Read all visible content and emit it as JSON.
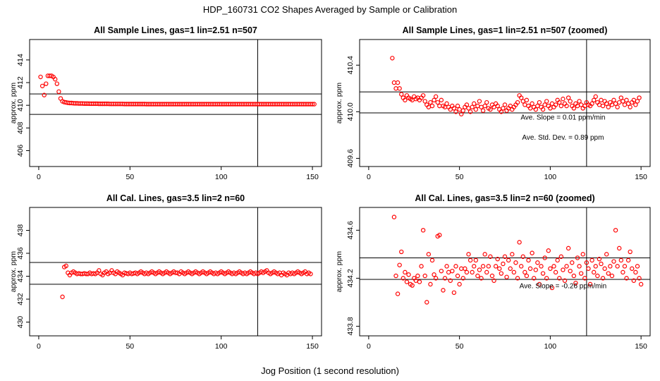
{
  "figure": {
    "title": "HDP_160731  CO2 Shapes Averaged by Sample or Calibration",
    "xlabel": "Jog Position (1 second resolution)"
  },
  "colors": {
    "points": "#ff0000",
    "lines": "#000000"
  },
  "chart_data": [
    {
      "type": "scatter",
      "title": "All Sample Lines, gas=1 lin=2.51 n=507",
      "ylabel": "approx. ppm",
      "xlim": [
        -5,
        155
      ],
      "ylim": [
        404.6,
        415.8
      ],
      "xticks": [
        "0",
        "50",
        "100",
        "150"
      ],
      "yticks": [
        "406",
        "408",
        "410",
        "412",
        "414"
      ],
      "hlines": [
        411.0,
        409.2
      ],
      "vline": 120,
      "annotations": [],
      "x_start": 1,
      "y": [
        412.5,
        411.7,
        410.9,
        411.9,
        412.6,
        412.6,
        412.6,
        412.5,
        412.3,
        411.9,
        411.2,
        410.6,
        410.35,
        410.28,
        410.25,
        410.22,
        410.2,
        410.2,
        410.18,
        410.17,
        410.17,
        410.16,
        410.16,
        410.16,
        410.15,
        410.15,
        410.15,
        410.14,
        410.14,
        410.14,
        410.14,
        410.14,
        410.13,
        410.13,
        410.13,
        410.13,
        410.13,
        410.13,
        410.12,
        410.12,
        410.12,
        410.12,
        410.12,
        410.12,
        410.12,
        410.12,
        410.11,
        410.11,
        410.11,
        410.11,
        410.11,
        410.11,
        410.11,
        410.11,
        410.11,
        410.11,
        410.11,
        410.11,
        410.1,
        410.1,
        410.1,
        410.1,
        410.1,
        410.1,
        410.1,
        410.1,
        410.1,
        410.1,
        410.1,
        410.1,
        410.1,
        410.1,
        410.1,
        410.1,
        410.1,
        410.1,
        410.1,
        410.1,
        410.1,
        410.1,
        410.1,
        410.1,
        410.1,
        410.1,
        410.1,
        410.1,
        410.1,
        410.1,
        410.1,
        410.1,
        410.1,
        410.1,
        410.1,
        410.1,
        410.1,
        410.1,
        410.1,
        410.1,
        410.1,
        410.1,
        410.1,
        410.1,
        410.1,
        410.1,
        410.1,
        410.1,
        410.1,
        410.1,
        410.1,
        410.1,
        410.1,
        410.1,
        410.1,
        410.1,
        410.1,
        410.1,
        410.1,
        410.1,
        410.1,
        410.1,
        410.1,
        410.1,
        410.1,
        410.1,
        410.1,
        410.1,
        410.1,
        410.1,
        410.1,
        410.1,
        410.1,
        410.1,
        410.1,
        410.1,
        410.1,
        410.1,
        410.1,
        410.1,
        410.1,
        410.1,
        410.1,
        410.1,
        410.1,
        410.1,
        410.1,
        410.1,
        410.1,
        410.1,
        410.1,
        410.1,
        410.1
      ]
    },
    {
      "type": "scatter",
      "title": "All Sample Lines, gas=1 lin=2.51 n=507 (zoomed)",
      "ylabel": "approx. ppm",
      "xlim": [
        -5,
        155
      ],
      "ylim": [
        409.53,
        410.62
      ],
      "xticks": [
        "0",
        "50",
        "100",
        "150"
      ],
      "yticks": [
        "409.6",
        "410.0",
        "410.4"
      ],
      "hlines": [
        410.17,
        409.99
      ],
      "vline": 120,
      "annotations": [
        "Ave. Slope =  0.01  ppm/min",
        "Ave. Std. Dev. =  0.89  ppm"
      ],
      "x_start": 13,
      "y": [
        410.46,
        410.25,
        410.2,
        410.25,
        410.2,
        410.15,
        410.12,
        410.1,
        410.14,
        410.12,
        410.11,
        410.1,
        410.13,
        410.11,
        410.12,
        410.1,
        410.12,
        410.14,
        410.09,
        410.06,
        410.04,
        410.08,
        410.05,
        410.1,
        410.13,
        410.08,
        410.05,
        410.1,
        410.05,
        410.04,
        410.07,
        410.04,
        410.02,
        410.05,
        410.03,
        410.0,
        410.05,
        410.02,
        409.98,
        410.01,
        410.04,
        410.06,
        410.03,
        410.0,
        410.04,
        410.07,
        410.02,
        410.05,
        410.09,
        410.04,
        410.01,
        410.05,
        410.08,
        410.03,
        410.02,
        410.06,
        410.04,
        410.07,
        410.05,
        410.02,
        410.0,
        410.03,
        410.06,
        410.01,
        410.03,
        410.05,
        410.02,
        410.04,
        410.06,
        410.08,
        410.14,
        410.12,
        410.09,
        410.06,
        410.1,
        410.05,
        410.03,
        410.07,
        410.04,
        410.02,
        410.05,
        410.08,
        410.04,
        410.02,
        410.06,
        410.09,
        410.05,
        410.03,
        410.07,
        410.04,
        410.06,
        410.1,
        410.08,
        410.05,
        410.11,
        410.07,
        410.05,
        410.12,
        410.09,
        410.05,
        410.03,
        410.07,
        410.05,
        410.09,
        410.06,
        410.03,
        410.05,
        410.08,
        410.06,
        410.05,
        410.07,
        410.1,
        410.13,
        410.08,
        410.06,
        410.1,
        410.05,
        410.09,
        410.07,
        410.04,
        410.08,
        410.06,
        410.1,
        410.07,
        410.04,
        410.08,
        410.12,
        410.09,
        410.06,
        410.1,
        410.07,
        410.04,
        410.08,
        410.1,
        410.06,
        410.09,
        410.12
      ]
    },
    {
      "type": "scatter",
      "title": "All Cal. Lines, gas=3.5 lin=2 n=60",
      "ylabel": "approx. ppm",
      "xlim": [
        -5,
        155
      ],
      "ylim": [
        428.8,
        440.0
      ],
      "xticks": [
        "0",
        "50",
        "100",
        "150"
      ],
      "yticks": [
        "430",
        "432",
        "434",
        "436",
        "438"
      ],
      "hlines": [
        435.2,
        433.3
      ],
      "vline": 120,
      "annotations": [],
      "x_start": 13,
      "y": [
        432.2,
        434.8,
        434.9,
        434.3,
        434.1,
        434.3,
        434.4,
        434.3,
        434.2,
        434.25,
        434.2,
        434.2,
        434.25,
        434.2,
        434.2,
        434.3,
        434.2,
        434.25,
        434.2,
        434.3,
        434.5,
        434.2,
        434.1,
        434.3,
        434.4,
        434.2,
        434.3,
        434.5,
        434.3,
        434.2,
        434.4,
        434.3,
        434.2,
        434.1,
        434.3,
        434.25,
        434.2,
        434.3,
        434.2,
        434.25,
        434.3,
        434.2,
        434.3,
        434.4,
        434.3,
        434.2,
        434.3,
        434.2,
        434.3,
        434.4,
        434.3,
        434.2,
        434.3,
        434.4,
        434.3,
        434.2,
        434.3,
        434.4,
        434.3,
        434.2,
        434.3,
        434.4,
        434.3,
        434.3,
        434.2,
        434.4,
        434.3,
        434.2,
        434.3,
        434.4,
        434.3,
        434.2,
        434.3,
        434.4,
        434.3,
        434.2,
        434.3,
        434.4,
        434.3,
        434.2,
        434.3,
        434.4,
        434.3,
        434.2,
        434.3,
        434.2,
        434.3,
        434.4,
        434.3,
        434.2,
        434.3,
        434.4,
        434.3,
        434.2,
        434.3,
        434.2,
        434.3,
        434.4,
        434.3,
        434.2,
        434.3,
        434.2,
        434.3,
        434.4,
        434.3,
        434.2,
        434.3,
        434.2,
        434.3,
        434.4,
        434.3,
        434.4,
        434.5,
        434.3,
        434.2,
        434.3,
        434.4,
        434.3,
        434.2,
        434.3,
        434.1,
        434.3,
        434.2,
        434.1,
        434.3,
        434.2,
        434.3,
        434.2,
        434.3,
        434.4,
        434.3,
        434.2,
        434.3,
        434.4,
        434.2,
        434.3,
        434.2
      ]
    },
    {
      "type": "scatter",
      "title": "All Cal. Lines, gas=3.5 lin=2 n=60 (zoomed)",
      "ylabel": "approx. ppm",
      "xlim": [
        -5,
        155
      ],
      "ylim": [
        433.72,
        434.79
      ],
      "xticks": [
        "0",
        "50",
        "100",
        "150"
      ],
      "yticks": [
        "433.8",
        "434.2",
        "434.6"
      ],
      "hlines": [
        434.37,
        434.19
      ],
      "vline": 120,
      "annotations": [
        "Ave. Slope =  -0.26  ppm/min"
      ],
      "x_start": 14,
      "y": [
        434.71,
        434.22,
        434.07,
        434.31,
        434.42,
        434.2,
        434.25,
        434.17,
        434.23,
        434.15,
        434.14,
        434.2,
        434.18,
        434.22,
        434.17,
        434.3,
        434.6,
        434.22,
        434.0,
        434.4,
        434.15,
        434.35,
        434.23,
        434.2,
        434.55,
        434.56,
        434.26,
        434.1,
        434.2,
        434.3,
        434.25,
        434.18,
        434.26,
        434.08,
        434.3,
        434.22,
        434.15,
        434.28,
        434.2,
        434.28,
        434.25,
        434.4,
        434.35,
        434.25,
        434.3,
        434.35,
        434.22,
        434.27,
        434.2,
        434.3,
        434.4,
        434.25,
        434.3,
        434.38,
        434.22,
        434.18,
        434.3,
        434.36,
        434.28,
        434.24,
        434.32,
        434.38,
        434.21,
        434.35,
        434.28,
        434.4,
        434.25,
        434.33,
        434.2,
        434.5,
        434.3,
        434.38,
        434.25,
        434.22,
        434.35,
        434.28,
        434.41,
        434.2,
        434.27,
        434.33,
        434.15,
        434.3,
        434.24,
        434.37,
        434.2,
        434.43,
        434.28,
        434.12,
        434.3,
        434.25,
        434.35,
        434.2,
        434.38,
        434.27,
        434.18,
        434.3,
        434.45,
        434.26,
        434.33,
        434.22,
        434.16,
        434.37,
        434.3,
        434.24,
        434.4,
        434.2,
        434.33,
        434.28,
        434.15,
        434.35,
        434.25,
        434.3,
        434.22,
        434.36,
        434.32,
        434.2,
        434.28,
        434.4,
        434.24,
        434.3,
        434.22,
        434.34,
        434.6,
        434.3,
        434.45,
        434.35,
        434.25,
        434.3,
        434.2,
        434.35,
        434.42,
        434.28,
        434.18,
        434.25,
        434.3,
        434.2,
        434.15
      ]
    }
  ]
}
